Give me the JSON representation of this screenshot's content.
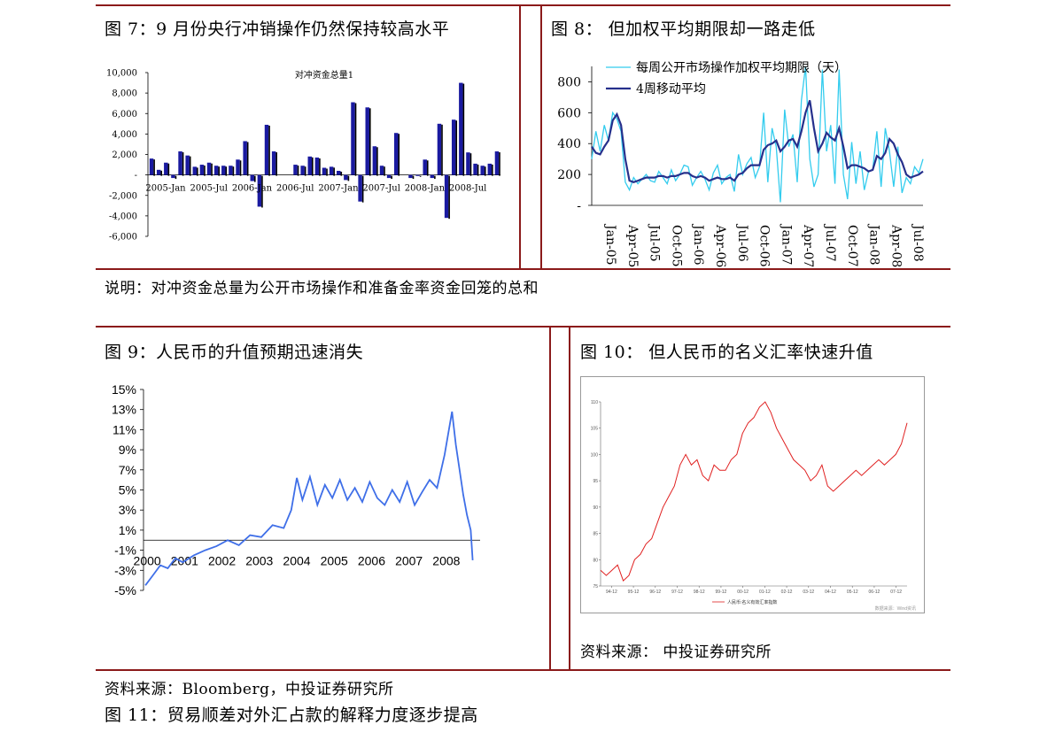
{
  "colors": {
    "rule": "#8b1a1a",
    "fig7_bar": "#1a1aa0",
    "fig8_weekly": "#33ccee",
    "fig8_ma": "#26308c",
    "fig9_line": "#3f6fe8",
    "fig10_line": "#e02020"
  },
  "fig7": {
    "title": "图 7：9 月份央行冲销操作仍然保持较高水平",
    "chart_data": {
      "type": "bar",
      "title": "对冲资金总量1",
      "y_ticks": [
        "10,000",
        "8,000",
        "6,000",
        "4,000",
        "2,000",
        "-",
        "-2,000",
        "-4,000",
        "-6,000"
      ],
      "ylim": [
        -6000,
        10000
      ],
      "x_ticks": [
        "2005-Jan",
        "2005-Jul",
        "2006-Jan",
        "2006-Jul",
        "2007-Jan",
        "2007-Jul",
        "2008-Jan",
        "2008-Jul"
      ],
      "values": [
        1600,
        500,
        1200,
        -300,
        2300,
        1900,
        800,
        1000,
        1200,
        900,
        900,
        900,
        1500,
        3300,
        -600,
        -3100,
        4900,
        2300,
        0,
        0,
        1000,
        900,
        1800,
        1700,
        700,
        800,
        400,
        -500,
        7100,
        -2600,
        6600,
        2800,
        900,
        -300,
        4100,
        0,
        -300,
        -100,
        1500,
        -300,
        5000,
        -4200,
        5400,
        9000,
        2200,
        1100,
        900,
        1100,
        2300
      ],
      "legend": [
        {
          "name": "对冲资金总量1"
        }
      ]
    }
  },
  "fig8": {
    "title": "图 8：  但加权平均期限却一路走低",
    "chart_data": {
      "type": "line",
      "y_ticks": [
        "800",
        "600",
        "400",
        "200",
        "-"
      ],
      "ylim": [
        0,
        900
      ],
      "x_ticks": [
        "Jan-05",
        "Apr-05",
        "Jul-05",
        "Oct-05",
        "Jan-06",
        "Apr-06",
        "Jul-06",
        "Oct-06",
        "Jan-07",
        "Apr-07",
        "Jul-07",
        "Oct-07",
        "Jan-08",
        "Apr-08",
        "Jul-08"
      ],
      "series": [
        {
          "name": "每周公开市场操作加权平均期限（天）",
          "values": [
            300,
            480,
            350,
            520,
            420,
            600,
            560,
            480,
            150,
            100,
            180,
            140,
            170,
            200,
            160,
            150,
            220,
            180,
            140,
            230,
            160,
            200,
            260,
            250,
            130,
            180,
            220,
            170,
            100,
            210,
            260,
            140,
            180,
            200,
            90,
            330,
            200,
            270,
            310,
            180,
            250,
            600,
            150,
            500,
            380,
            20,
            620,
            380,
            460,
            150,
            680,
            900,
            300,
            120,
            200,
            880,
            350,
            520,
            140,
            880,
            200,
            40,
            410,
            140,
            350,
            100,
            220,
            230,
            480,
            120,
            500,
            350,
            120,
            380,
            80,
            180,
            140,
            250,
            210,
            300
          ]
        },
        {
          "name": "4周移动平均",
          "values": [
            380,
            340,
            330,
            380,
            420,
            550,
            590,
            520,
            300,
            160,
            150,
            160,
            170,
            180,
            180,
            180,
            190,
            190,
            180,
            190,
            190,
            200,
            210,
            210,
            190,
            180,
            190,
            180,
            160,
            170,
            180,
            170,
            170,
            180,
            160,
            200,
            210,
            240,
            260,
            260,
            260,
            360,
            390,
            400,
            420,
            350,
            380,
            420,
            430,
            380,
            480,
            600,
            680,
            500,
            350,
            400,
            470,
            440,
            420,
            500,
            380,
            240,
            260,
            260,
            250,
            240,
            220,
            230,
            320,
            300,
            340,
            430,
            400,
            330,
            280,
            200,
            180,
            190,
            200,
            220
          ]
        }
      ]
    }
  },
  "note1": "说明：对冲资金总量为公开市场操作和准备金率资金回笼的总和",
  "fig9": {
    "title": "图 9：人民币的升值预期迅速消失",
    "chart_data": {
      "type": "line",
      "y_ticks": [
        "15%",
        "13%",
        "11%",
        "9%",
        "7%",
        "5%",
        "3%",
        "1%",
        "-1%",
        "-3%",
        "-5%"
      ],
      "ylim": [
        -5,
        15
      ],
      "x_ticks": [
        "2000",
        "2001",
        "2002",
        "2003",
        "2004",
        "2005",
        "2006",
        "2007",
        "2008"
      ],
      "x": [
        2000.0,
        2000.2,
        2000.4,
        2000.6,
        2000.8,
        2001.0,
        2001.3,
        2001.6,
        2001.9,
        2002.2,
        2002.5,
        2002.8,
        2003.1,
        2003.4,
        2003.7,
        2003.9,
        2004.05,
        2004.2,
        2004.4,
        2004.6,
        2004.8,
        2005.0,
        2005.2,
        2005.4,
        2005.6,
        2005.8,
        2006.0,
        2006.2,
        2006.4,
        2006.6,
        2006.8,
        2007.0,
        2007.2,
        2007.4,
        2007.6,
        2007.8,
        2008.0,
        2008.2,
        2008.3,
        2008.4,
        2008.5,
        2008.6,
        2008.7,
        2008.75
      ],
      "values": [
        -4.5,
        -3.5,
        -2.5,
        -2.8,
        -1.8,
        -2.2,
        -1.5,
        -1.0,
        -0.6,
        0.0,
        -0.5,
        0.5,
        0.3,
        1.5,
        1.2,
        3.0,
        6.2,
        4.0,
        6.3,
        3.5,
        5.5,
        4.2,
        6.0,
        4.0,
        5.2,
        3.8,
        5.8,
        4.2,
        3.5,
        5.0,
        3.8,
        5.8,
        3.5,
        4.8,
        6.0,
        5.2,
        8.5,
        12.8,
        9.5,
        7.0,
        4.5,
        2.5,
        1.0,
        -2.0
      ],
      "baseline": 0
    }
  },
  "fig10": {
    "title": "图 10：  但人民币的名义汇率快速升值",
    "chart_data": {
      "type": "line",
      "y_ticks": [
        "110",
        "105",
        "100",
        "95",
        "90",
        "85",
        "80",
        "75"
      ],
      "ylim": [
        75,
        110
      ],
      "x_ticks": [
        "94-12",
        "95-12",
        "96-12",
        "97-12",
        "98-12",
        "99-12",
        "00-12",
        "01-12",
        "02-12",
        "03-12",
        "04-12",
        "05-12",
        "06-12",
        "07-12"
      ],
      "values": [
        78,
        77,
        78,
        79,
        76,
        77,
        80,
        81,
        83,
        84,
        87,
        90,
        92,
        94,
        98,
        100,
        98,
        99,
        96,
        95,
        98,
        97,
        97,
        99,
        100,
        104,
        106,
        107,
        109,
        110,
        108,
        105,
        103,
        101,
        99,
        98,
        97,
        95,
        96,
        98,
        94,
        93,
        94,
        95,
        96,
        97,
        96,
        97,
        98,
        99,
        98,
        99,
        100,
        102,
        106
      ],
      "legend": [
        {
          "name": "人民币:名义有效汇率指数"
        }
      ],
      "watermark": "数据来源：Wind资讯"
    },
    "source": "资料来源：  中投证券研究所"
  },
  "source2": "资料来源：Bloomberg，中投证券研究所",
  "fig11": {
    "title": "图 11：贸易顺差对外汇占款的解释力度逐步提高"
  }
}
